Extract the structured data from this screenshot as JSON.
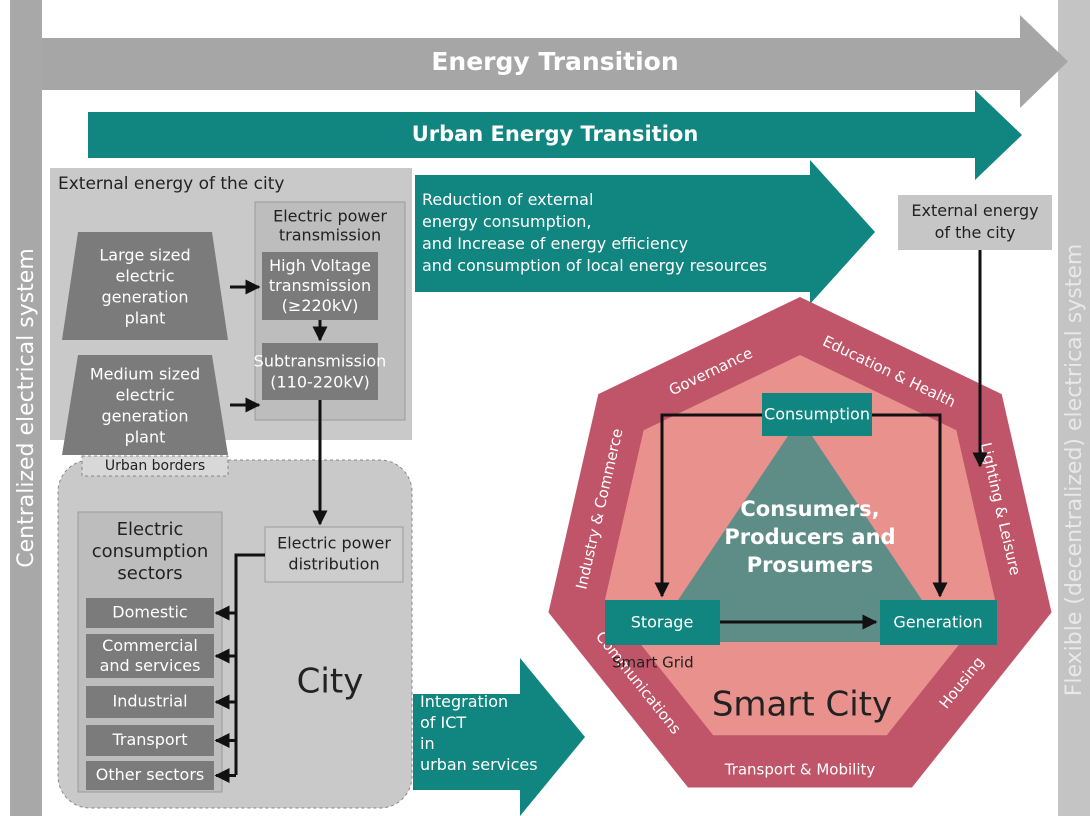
{
  "left_bar": "Centralized electrical system",
  "right_bar": "Flexible (decentralized) electrical system",
  "energy_transition": "Energy Transition",
  "urban_energy_transition": "Urban Energy Transition",
  "external_energy_panel": {
    "title": "External energy of the city",
    "large_plant": [
      "Large sized",
      "electric",
      "generation",
      "plant"
    ],
    "medium_plant": [
      "Medium sized",
      "electric",
      "generation",
      "plant"
    ],
    "transmission": {
      "title": [
        "Electric power",
        "transmission"
      ],
      "high_voltage": [
        "High Voltage",
        "transmission",
        "(≥220kV)"
      ],
      "subtransmission": [
        "Subtransmission",
        "(110-220kV)"
      ]
    }
  },
  "urban_borders": {
    "label": "Urban borders",
    "sectors_title": [
      "Electric",
      "consumption",
      "sectors"
    ],
    "sectors": [
      "Domestic",
      [
        "Commercial",
        "and services"
      ],
      "Industrial",
      "Transport",
      "Other sectors"
    ],
    "distribution": [
      "Electric power",
      "distribution"
    ],
    "city": "City"
  },
  "reduction_arrow": [
    "Reduction of external",
    "energy consumption,",
    "and Increase of energy efficiency",
    "and consumption of local energy resources"
  ],
  "external_energy_right": [
    "External energy",
    "of the city"
  ],
  "ict_arrow": [
    "Integration",
    "of ICT",
    "in",
    "urban services"
  ],
  "smart_city": {
    "label": "Smart City",
    "smart_grid": "Smart Grid",
    "center": [
      "Consumers,",
      "Producers and",
      "Prosumers"
    ],
    "consumption": "Consumption",
    "storage": "Storage",
    "generation": "Generation",
    "domains": [
      "Governance",
      "Education & Health",
      "Lighting & Leisure",
      "Housing",
      "Transport & Mobility",
      "Communications",
      "Industry & Commerce"
    ]
  }
}
